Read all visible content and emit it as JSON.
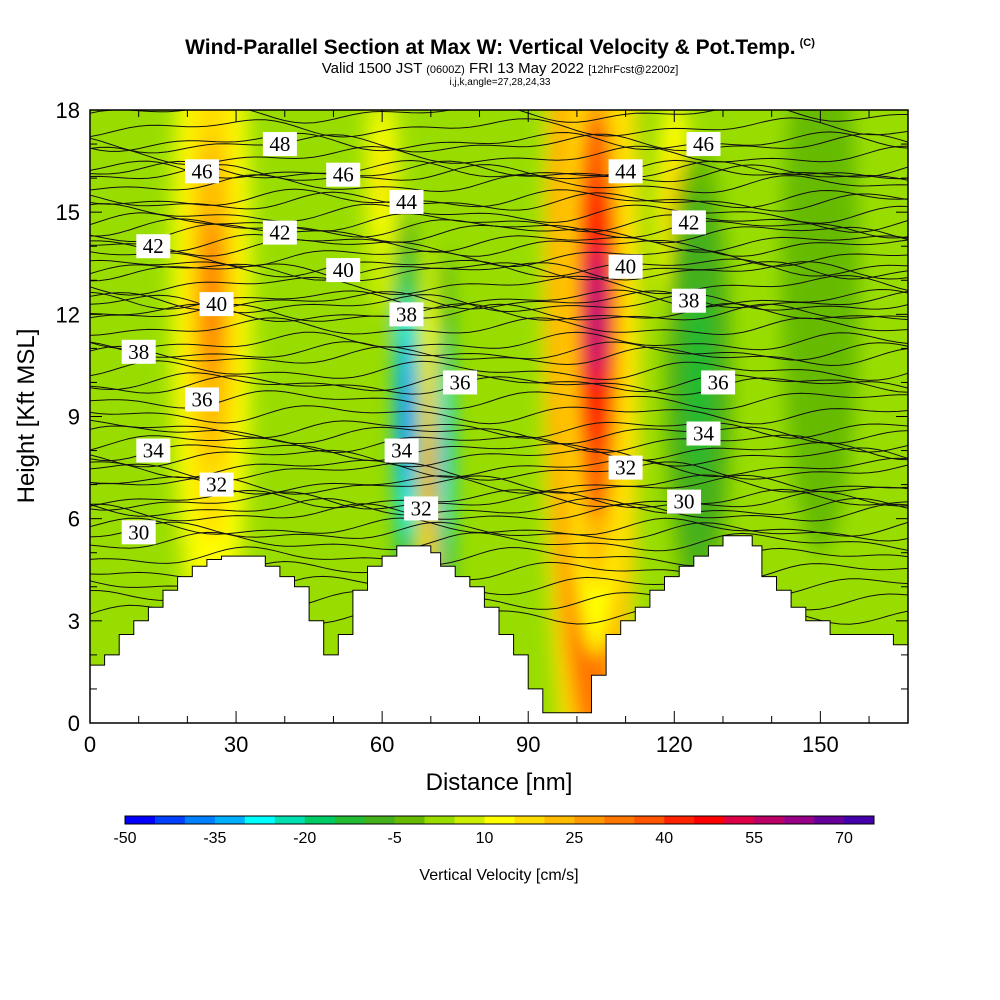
{
  "header": {
    "title": "Wind-Parallel Section at Max W: Vertical Velocity & Pot.Temp.",
    "copyright": "(C)",
    "valid_prefix": "Valid 1500 JST",
    "valid_utc": "(0600Z)",
    "valid_date": "FRI 13 May 2022",
    "forecast": "[12hrFcst@2200z]",
    "grid_info": "i,j,k,angle=27,28,24,33"
  },
  "chart_data": {
    "type": "heatmap",
    "xlabel": "Distance [nm]",
    "ylabel": "Height [Kft MSL]",
    "xlim": [
      0,
      168
    ],
    "ylim": [
      0,
      18
    ],
    "x_ticks": [
      0,
      30,
      60,
      90,
      120,
      150
    ],
    "y_ticks": [
      0,
      3,
      6,
      9,
      12,
      15,
      18
    ],
    "colorbar": {
      "label": "Vertical Velocity [cm/s]",
      "min": -50,
      "max": 80,
      "step": 5,
      "tick_labels": [
        "-50",
        "-35",
        "-20",
        "-5",
        "10",
        "25",
        "40",
        "55",
        "70"
      ],
      "colors": [
        "#0000ff",
        "#0040ff",
        "#0080ff",
        "#00b0ff",
        "#00ffff",
        "#00e0b0",
        "#00cc66",
        "#22bb33",
        "#44b01a",
        "#66bb00",
        "#99dd00",
        "#ccee00",
        "#ffff00",
        "#ffdd00",
        "#ffbb00",
        "#ff9900",
        "#ff7700",
        "#ff5500",
        "#ff2200",
        "#ff0000",
        "#dd0044",
        "#bb0066",
        "#990088",
        "#660099",
        "#4400aa"
      ]
    },
    "terrain": [
      [
        0,
        1.7
      ],
      [
        3,
        1.7
      ],
      [
        3,
        2.0
      ],
      [
        6,
        2.0
      ],
      [
        6,
        2.6
      ],
      [
        9,
        2.6
      ],
      [
        9,
        3.0
      ],
      [
        12,
        3.0
      ],
      [
        12,
        3.4
      ],
      [
        15,
        3.4
      ],
      [
        15,
        3.9
      ],
      [
        18,
        3.9
      ],
      [
        18,
        4.3
      ],
      [
        21,
        4.3
      ],
      [
        21,
        4.6
      ],
      [
        24,
        4.6
      ],
      [
        24,
        4.8
      ],
      [
        27,
        4.8
      ],
      [
        27,
        4.9
      ],
      [
        36,
        4.9
      ],
      [
        36,
        4.6
      ],
      [
        39,
        4.6
      ],
      [
        39,
        4.3
      ],
      [
        42,
        4.3
      ],
      [
        42,
        4.0
      ],
      [
        45,
        4.0
      ],
      [
        45,
        3.0
      ],
      [
        48,
        3.0
      ],
      [
        48,
        2.0
      ],
      [
        51,
        2.0
      ],
      [
        51,
        2.6
      ],
      [
        54,
        2.6
      ],
      [
        54,
        3.9
      ],
      [
        57,
        3.9
      ],
      [
        57,
        4.6
      ],
      [
        60,
        4.6
      ],
      [
        60,
        4.9
      ],
      [
        63,
        4.9
      ],
      [
        63,
        5.2
      ],
      [
        70,
        5.2
      ],
      [
        70,
        5.0
      ],
      [
        72,
        5.0
      ],
      [
        72,
        4.6
      ],
      [
        75,
        4.6
      ],
      [
        75,
        4.3
      ],
      [
        78,
        4.3
      ],
      [
        78,
        4.0
      ],
      [
        81,
        4.0
      ],
      [
        81,
        3.4
      ],
      [
        84,
        3.4
      ],
      [
        84,
        2.6
      ],
      [
        87,
        2.6
      ],
      [
        87,
        2.0
      ],
      [
        90,
        2.0
      ],
      [
        90,
        1.0
      ],
      [
        93,
        1.0
      ],
      [
        93,
        0.3
      ],
      [
        103,
        0.3
      ],
      [
        103,
        1.4
      ],
      [
        106,
        1.4
      ],
      [
        106,
        2.6
      ],
      [
        109,
        2.6
      ],
      [
        109,
        3.0
      ],
      [
        112,
        3.0
      ],
      [
        112,
        3.4
      ],
      [
        115,
        3.4
      ],
      [
        115,
        3.9
      ],
      [
        118,
        3.9
      ],
      [
        118,
        4.3
      ],
      [
        121,
        4.3
      ],
      [
        121,
        4.6
      ],
      [
        124,
        4.6
      ],
      [
        124,
        4.9
      ],
      [
        127,
        4.9
      ],
      [
        127,
        5.2
      ],
      [
        130,
        5.2
      ],
      [
        130,
        5.5
      ],
      [
        136,
        5.5
      ],
      [
        136,
        5.2
      ],
      [
        138,
        5.2
      ],
      [
        138,
        4.3
      ],
      [
        141,
        4.3
      ],
      [
        141,
        3.9
      ],
      [
        144,
        3.9
      ],
      [
        144,
        3.4
      ],
      [
        147,
        3.4
      ],
      [
        147,
        3.0
      ],
      [
        152,
        3.0
      ],
      [
        152,
        2.6
      ],
      [
        165,
        2.6
      ],
      [
        165,
        2.3
      ],
      [
        168,
        2.3
      ]
    ],
    "updraft_cells": [
      {
        "x": 25,
        "y": 12.5,
        "value": 30,
        "width": 9,
        "height": 12
      },
      {
        "x": 103,
        "y": 12.0,
        "value": 80,
        "width": 10,
        "height": 16
      },
      {
        "x": 104,
        "y": 12.0,
        "value": 60,
        "width": 7,
        "height": 10
      },
      {
        "x": 70,
        "y": 7.0,
        "value": 30,
        "width": 3,
        "height": 7
      },
      {
        "x": 120,
        "y": 15.0,
        "value": 20,
        "width": 5,
        "height": 5
      },
      {
        "x": 60,
        "y": 16.0,
        "value": 15,
        "width": 5,
        "height": 5
      }
    ],
    "downdraft_cells": [
      {
        "x": 65,
        "y": 9.0,
        "value": -50,
        "width": 3,
        "height": 6
      },
      {
        "x": 73,
        "y": 8.0,
        "value": -35,
        "width": 2,
        "height": 6
      },
      {
        "x": 125,
        "y": 10.0,
        "value": -15,
        "width": 7,
        "height": 7
      },
      {
        "x": 150,
        "y": 13.0,
        "value": -5,
        "width": 8,
        "height": 8
      }
    ],
    "theta_contours": [
      {
        "value": 30,
        "label": "30",
        "label_x": 10,
        "label_y": 5.6,
        "y": 5.6
      },
      {
        "value": 32,
        "label": "32",
        "label_x": 26,
        "label_y": 7.0,
        "y": 7.0
      },
      {
        "value": 32,
        "label": "32",
        "label_x": 68,
        "label_y": 6.3,
        "y": 6.3
      },
      {
        "value": 32,
        "label": "32",
        "label_x": 110,
        "label_y": 7.5,
        "y": 7.5
      },
      {
        "value": 30,
        "label": "30",
        "label_x": 122,
        "label_y": 6.5,
        "y": 6.5
      },
      {
        "value": 34,
        "label": "34",
        "label_x": 13,
        "label_y": 8.0,
        "y": 8.0
      },
      {
        "value": 34,
        "label": "34",
        "label_x": 64,
        "label_y": 8.0,
        "y": 8.0
      },
      {
        "value": 34,
        "label": "34",
        "label_x": 126,
        "label_y": 8.5,
        "y": 8.5
      },
      {
        "value": 36,
        "label": "36",
        "label_x": 23,
        "label_y": 9.5,
        "y": 9.5
      },
      {
        "value": 36,
        "label": "36",
        "label_x": 76,
        "label_y": 10.0,
        "y": 10.0
      },
      {
        "value": 36,
        "label": "36",
        "label_x": 129,
        "label_y": 10.0,
        "y": 10.0
      },
      {
        "value": 38,
        "label": "38",
        "label_x": 10,
        "label_y": 10.9,
        "y": 10.9
      },
      {
        "value": 38,
        "label": "38",
        "label_x": 65,
        "label_y": 12.0,
        "y": 12.0
      },
      {
        "value": 38,
        "label": "38",
        "label_x": 123,
        "label_y": 12.4,
        "y": 12.4
      },
      {
        "value": 40,
        "label": "40",
        "label_x": 26,
        "label_y": 12.3,
        "y": 12.3
      },
      {
        "value": 40,
        "label": "40",
        "label_x": 52,
        "label_y": 13.3,
        "y": 13.3
      },
      {
        "value": 40,
        "label": "40",
        "label_x": 110,
        "label_y": 13.4,
        "y": 13.4
      },
      {
        "value": 42,
        "label": "42",
        "label_x": 13,
        "label_y": 14.0,
        "y": 14.0
      },
      {
        "value": 42,
        "label": "42",
        "label_x": 39,
        "label_y": 14.4,
        "y": 14.4
      },
      {
        "value": 42,
        "label": "42",
        "label_x": 123,
        "label_y": 14.7,
        "y": 14.7
      },
      {
        "value": 44,
        "label": "44",
        "label_x": 65,
        "label_y": 15.3,
        "y": 15.3
      },
      {
        "value": 44,
        "label": "44",
        "label_x": 110,
        "label_y": 16.2,
        "y": 16.2
      },
      {
        "value": 46,
        "label": "46",
        "label_x": 23,
        "label_y": 16.2,
        "y": 16.2
      },
      {
        "value": 46,
        "label": "46",
        "label_x": 52,
        "label_y": 16.1,
        "y": 16.1
      },
      {
        "value": 46,
        "label": "46",
        "label_x": 126,
        "label_y": 17.0,
        "y": 17.0
      },
      {
        "value": 48,
        "label": "48",
        "label_x": 39,
        "label_y": 17.0,
        "y": 17.0
      }
    ]
  }
}
